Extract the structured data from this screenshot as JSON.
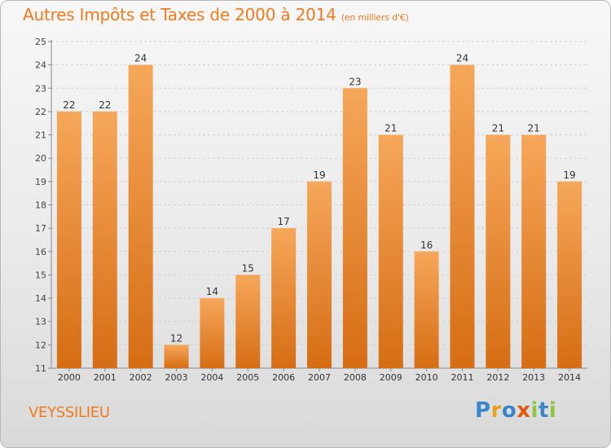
{
  "title": {
    "main": "Autres Impôts et Taxes de 2000 à 2014",
    "unit": "(en milliers d'€)"
  },
  "commune": "VEYSSILIEU",
  "logo": {
    "letters": [
      "P",
      "r",
      "o",
      "x",
      "i",
      "t",
      "i"
    ],
    "colors": [
      "#3a86c8",
      "#e8a020",
      "#3a86c8",
      "#e05a10",
      "#8dc63f",
      "#3a86c8",
      "#8dc63f"
    ]
  },
  "colors": {
    "accent": "#f07a1e",
    "bar_top": "#f6a75a",
    "bar_bottom": "#d66d14",
    "grid": "#cfcfcf"
  },
  "chart_data": {
    "type": "bar",
    "categories": [
      "2000",
      "2001",
      "2002",
      "2003",
      "2004",
      "2005",
      "2006",
      "2007",
      "2008",
      "2009",
      "2010",
      "2011",
      "2012",
      "2013",
      "2014"
    ],
    "values": [
      22,
      22,
      24,
      12,
      14,
      15,
      17,
      19,
      23,
      21,
      16,
      24,
      21,
      21,
      19
    ],
    "title": "Autres Impôts et Taxes de 2000 à 2014",
    "xlabel": "",
    "ylabel": "",
    "ylim": [
      11,
      25
    ],
    "yticks": [
      11,
      12,
      13,
      14,
      15,
      16,
      17,
      18,
      19,
      20,
      21,
      22,
      23,
      24,
      25
    ],
    "grid": true,
    "data_labels": true
  }
}
